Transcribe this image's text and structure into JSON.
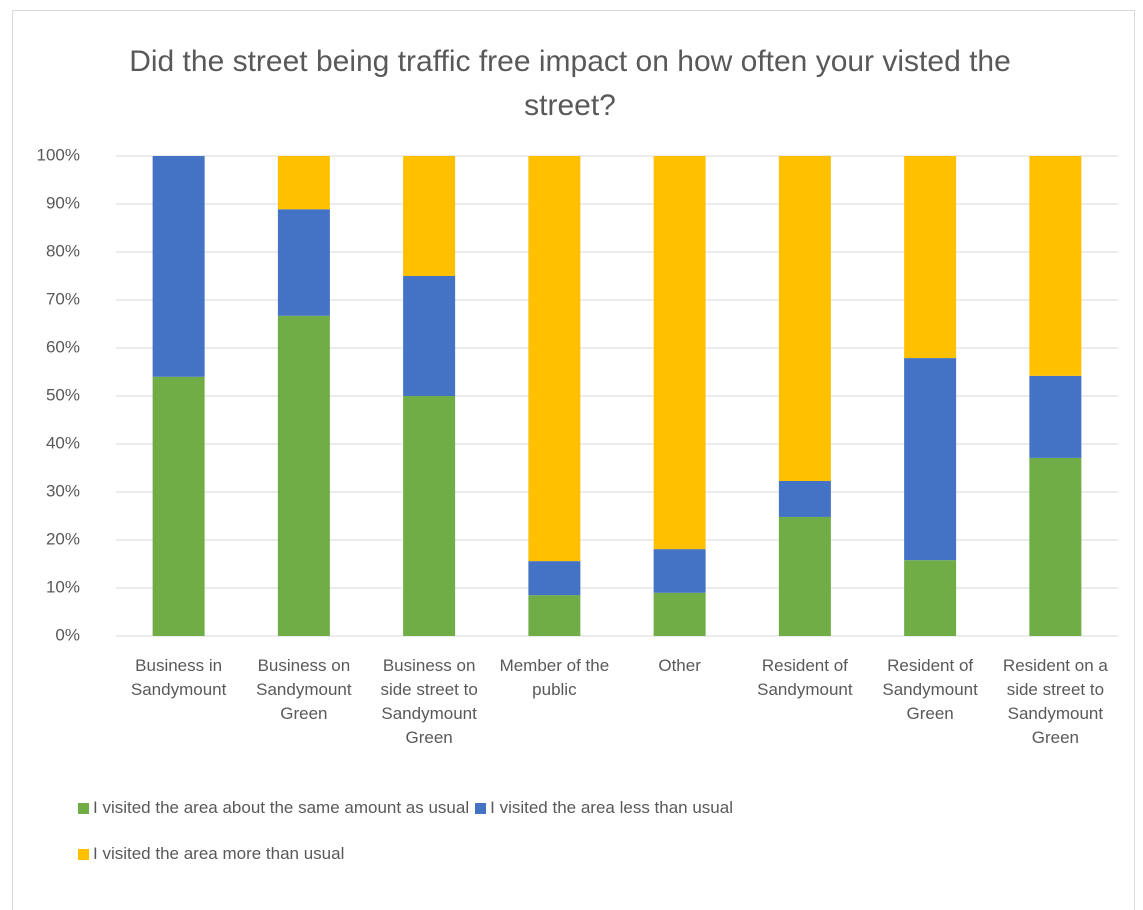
{
  "chart_data": {
    "type": "stacked_bar_100",
    "title": "Did the street being traffic free impact on how often your visted the street?",
    "categories": [
      "Business in Sandymount",
      "Business on Sandymount Green",
      "Business on side street to Sandymount Green",
      "Member of the public",
      "Other",
      "Resident of Sandymount",
      "Resident of Sandymount Green",
      "Resident on a side street to Sandymount Green"
    ],
    "series": [
      {
        "name": "I visited the area about the same amount as usual",
        "color": "#70ad47",
        "values": [
          54,
          66.7,
          50,
          8.5,
          9,
          24.8,
          15.8,
          37.1
        ]
      },
      {
        "name": "I visited the area less than usual",
        "color": "#4472c4",
        "values": [
          46,
          22.2,
          25,
          7.1,
          9.1,
          7.5,
          42.1,
          17.1
        ]
      },
      {
        "name": "I visited the area more than usual",
        "color": "#ffc000",
        "values": [
          0,
          11.1,
          25,
          84.4,
          81.9,
          67.7,
          42.1,
          45.8
        ]
      }
    ],
    "ylim": [
      0,
      100
    ],
    "yticks": [
      {
        "value": 0,
        "label": "0%"
      },
      {
        "value": 10,
        "label": "10%"
      },
      {
        "value": 20,
        "label": "20%"
      },
      {
        "value": 30,
        "label": "30%"
      },
      {
        "value": 40,
        "label": "40%"
      },
      {
        "value": 50,
        "label": "50%"
      },
      {
        "value": 60,
        "label": "60%"
      },
      {
        "value": 70,
        "label": "70%"
      },
      {
        "value": 80,
        "label": "80%"
      },
      {
        "value": 90,
        "label": "90%"
      },
      {
        "value": 100,
        "label": "100%"
      }
    ],
    "grid": true,
    "legend": "bottom"
  }
}
